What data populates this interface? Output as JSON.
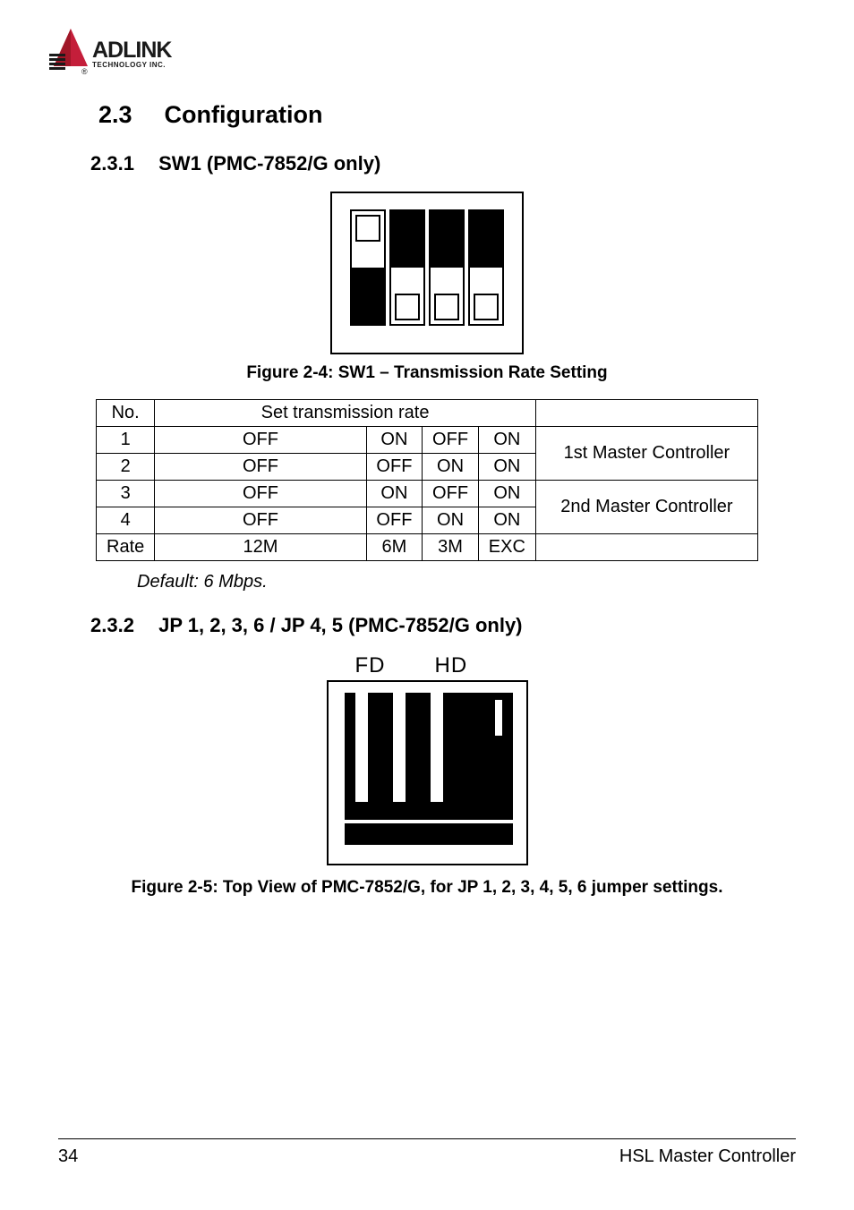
{
  "logo": {
    "primary_color": "#c41e3a",
    "secondary_color": "#1a1a1a",
    "main_text": "ADLINK",
    "sub_text": "TECHNOLOGY INC."
  },
  "section": {
    "num": "2.3",
    "title": "Configuration"
  },
  "sub1": {
    "num": "2.3.1",
    "title": "SW1 (PMC-7852/G only)"
  },
  "fig1": {
    "caption": "Figure 2-4: SW1 – Transmission Rate Setting",
    "switches": [
      {
        "fill": "bottom",
        "indicator": "top"
      },
      {
        "fill": "top",
        "indicator": "bottom"
      },
      {
        "fill": "top",
        "indicator": "bottom"
      },
      {
        "fill": "top",
        "indicator": "bottom"
      }
    ]
  },
  "table": {
    "header": {
      "c0": "No.",
      "c1": "Set transmission rate",
      "c5": ""
    },
    "rows": [
      {
        "c0": "1",
        "c1": "OFF",
        "c2": "ON",
        "c3": "OFF",
        "c4": "ON",
        "c5": "1st Master Controller"
      },
      {
        "c0": "2",
        "c1": "OFF",
        "c2": "OFF",
        "c3": "ON",
        "c4": "ON"
      },
      {
        "c0": "3",
        "c1": "OFF",
        "c2": "ON",
        "c3": "OFF",
        "c4": "ON",
        "c5": "2nd Master Controller"
      },
      {
        "c0": "4",
        "c1": "OFF",
        "c2": "OFF",
        "c3": "ON",
        "c4": "ON"
      }
    ],
    "rate_row": {
      "c0": "Rate",
      "c1": "12M",
      "c2": "6M",
      "c3": "3M",
      "c4": "EXC",
      "c5": ""
    }
  },
  "default_note": "Default: 6 Mbps.",
  "sub2": {
    "num": "2.3.2",
    "title": "JP 1, 2, 3, 6 / JP 4, 5 (PMC-7852/G only)"
  },
  "fig2": {
    "label_fd": "FD",
    "label_hd": "HD",
    "caption": "Figure 2-5: Top View of PMC-7852/G, for JP 1, 2, 3, 4, 5, 6 jumper settings."
  },
  "footer": {
    "page": "34",
    "title": "HSL Master Controller"
  },
  "colors": {
    "text": "#000000",
    "bg": "#ffffff",
    "border": "#000000"
  }
}
